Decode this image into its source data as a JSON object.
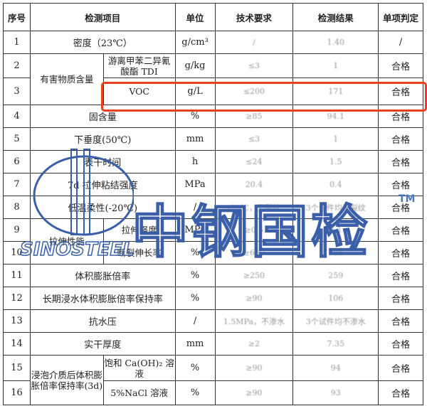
{
  "headers": [
    "序号",
    "检测项目",
    "单位",
    "技术要求",
    "检测结果",
    "单项判定"
  ],
  "rows": [
    {
      "no": "1",
      "item": "密度（23℃）",
      "unit": "g/cm³",
      "req": "/",
      "result": "1.40",
      "verdict": "/"
    },
    {
      "no": "2",
      "group": "有害物质含量",
      "item": "游离甲苯二异氰酸酯 TDI",
      "unit": "g/kg",
      "req": "≤3",
      "result": "1",
      "verdict": "合格"
    },
    {
      "no": "3",
      "item": "VOC",
      "unit": "g/L",
      "req": "≤200",
      "result": "171",
      "verdict": "合格"
    },
    {
      "no": "4",
      "item": "固含量",
      "unit": "%",
      "req": "≥85",
      "result": "94.1",
      "verdict": "合格"
    },
    {
      "no": "5",
      "item": "下垂度(50℃)",
      "unit": "mm",
      "req": "≤3",
      "result": "1",
      "verdict": "合格"
    },
    {
      "no": "6",
      "item": "表干时间",
      "unit": "h",
      "req": "≤24",
      "result": "1.5",
      "verdict": "合格"
    },
    {
      "no": "7",
      "item": "7d 拉伸粘结强度",
      "unit": "MPa",
      "req": "20.4",
      "result": "0.4",
      "verdict": "合格"
    },
    {
      "no": "8",
      "item": "低温柔性(-20℃)",
      "unit": "/",
      "req": "-20℃，无裂纹",
      "result": "3个试件均无裂纹",
      "verdict": "合格"
    },
    {
      "no": "9",
      "group": "拉伸性能",
      "item": "拉伸强度",
      "unit": "MPa",
      "req": "≥0.5",
      "result": "2.1",
      "verdict": "合格"
    },
    {
      "no": "10",
      "item": "断裂伸长率",
      "unit": "%",
      "req": "≥600",
      "result": "798",
      "verdict": "合格"
    },
    {
      "no": "11",
      "item": "体积膨胀倍率",
      "unit": "%",
      "req": "≥250",
      "result": "259",
      "verdict": "合格"
    },
    {
      "no": "12",
      "item": "长期浸水体积膨胀倍率保持率",
      "unit": "%",
      "req": "≥90",
      "result": "106",
      "verdict": "合格"
    },
    {
      "no": "13",
      "item": "抗水压",
      "unit": "/",
      "req": "1.5MPa，不渗水",
      "result": "3个试件均不渗水",
      "verdict": "合格"
    },
    {
      "no": "14",
      "item": "实干厚度",
      "unit": "mm",
      "req": "≥2",
      "result": "7.35",
      "verdict": "合格"
    },
    {
      "no": "15",
      "group": "浸泡介质后体积膨胀倍率保持率(3d)",
      "item": "饱和 Ca(OH)₂ 溶液",
      "unit": "%",
      "req": "≥90",
      "result": "94",
      "verdict": "合格"
    },
    {
      "no": "16",
      "item": "5%NaCl 溶液",
      "unit": "%",
      "req": "≥90",
      "result": "93",
      "verdict": "合格"
    }
  ],
  "watermark": {
    "cn": "中钢国检",
    "en": "SINOSTEEL",
    "tm": "TM",
    "color": "#3a5fa8"
  },
  "highlight_color": "#e8401f"
}
